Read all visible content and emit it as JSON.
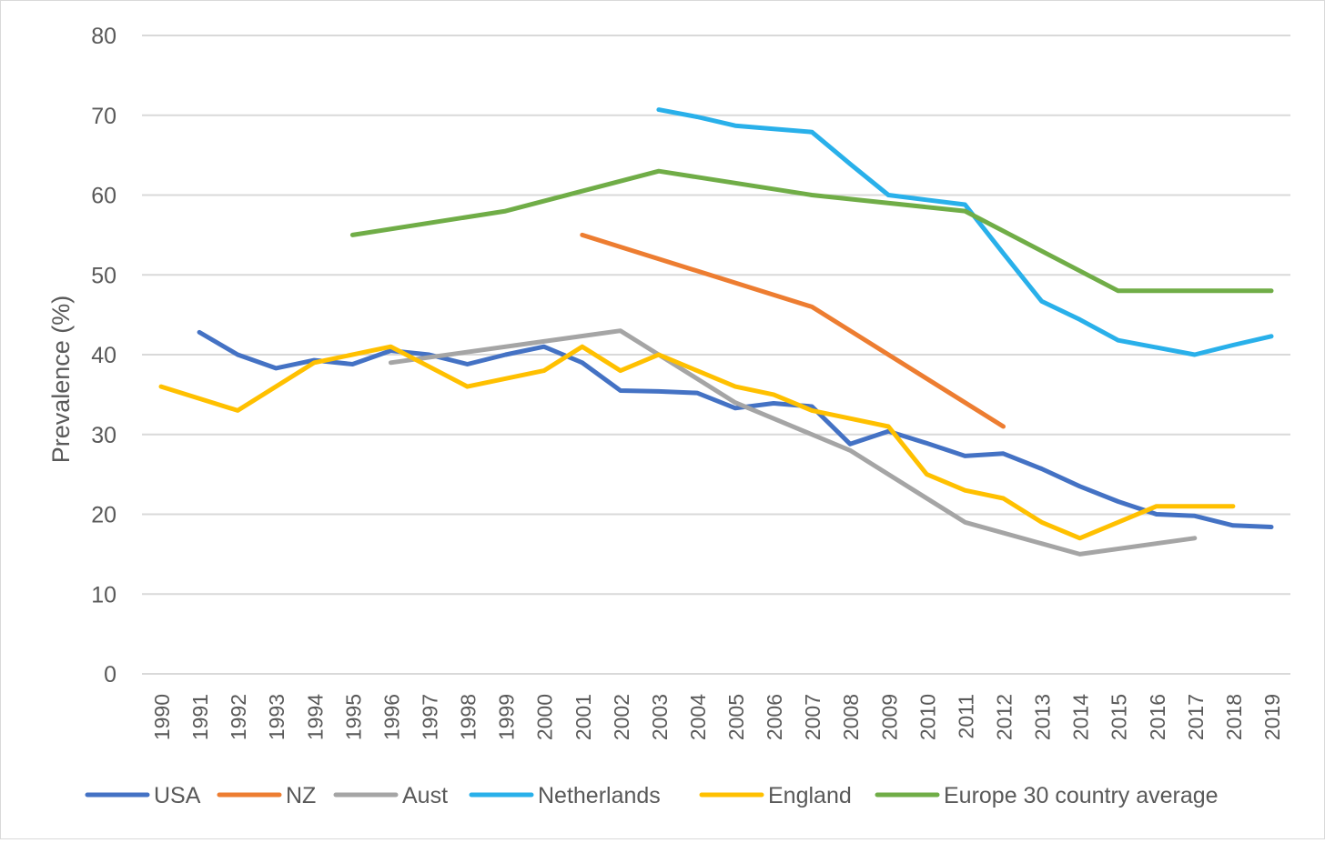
{
  "chart_data": {
    "type": "line",
    "title": "",
    "xlabel": "",
    "ylabel": "Prevalence (%)",
    "ylim": [
      0,
      80
    ],
    "yticks": [
      0,
      10,
      20,
      30,
      40,
      50,
      60,
      70,
      80
    ],
    "grid": true,
    "legend_position": "bottom",
    "categories": [
      "1990",
      "1991",
      "1992",
      "1993",
      "1994",
      "1995",
      "1996",
      "1997",
      "1998",
      "1999",
      "2000",
      "2001",
      "2002",
      "2003",
      "2004",
      "2005",
      "2006",
      "2007",
      "2008",
      "2009",
      "2010",
      "2011",
      "2012",
      "2013",
      "2014",
      "2015",
      "2016",
      "2017",
      "2018",
      "2019"
    ],
    "series": [
      {
        "name": "USA",
        "color": "#4472c4",
        "values": [
          null,
          42.8,
          40.0,
          38.3,
          39.3,
          38.8,
          40.5,
          40.0,
          38.8,
          40.0,
          41.0,
          39.0,
          35.5,
          35.4,
          35.2,
          33.3,
          33.9,
          33.5,
          28.8,
          30.4,
          28.9,
          27.3,
          27.6,
          25.7,
          23.5,
          21.6,
          20.0,
          19.8,
          18.6,
          18.4
        ]
      },
      {
        "name": "NZ",
        "color": "#ed7d31",
        "values": [
          null,
          null,
          null,
          null,
          null,
          null,
          null,
          null,
          null,
          null,
          null,
          55,
          null,
          null,
          null,
          null,
          null,
          46,
          null,
          null,
          null,
          null,
          31,
          null,
          null,
          null,
          null,
          null,
          null,
          null
        ]
      },
      {
        "name": "Aust",
        "color": "#a5a5a5",
        "values": [
          null,
          null,
          null,
          null,
          null,
          null,
          39,
          null,
          null,
          null,
          null,
          null,
          43,
          null,
          null,
          34,
          null,
          null,
          28,
          null,
          null,
          19,
          null,
          null,
          15,
          null,
          null,
          17,
          null,
          null
        ]
      },
      {
        "name": "Netherlands",
        "color": "#29b0ea",
        "values": [
          null,
          null,
          null,
          null,
          null,
          null,
          null,
          null,
          null,
          null,
          null,
          null,
          null,
          70.7,
          69.8,
          68.7,
          68.3,
          67.9,
          63.9,
          60.0,
          59.4,
          58.8,
          52.7,
          46.7,
          44.4,
          41.8,
          40.9,
          40.0,
          41.2,
          42.3
        ]
      },
      {
        "name": "England",
        "color": "#ffc000",
        "values": [
          36,
          null,
          33,
          null,
          39,
          null,
          41,
          null,
          36,
          null,
          38,
          41,
          38,
          40,
          38,
          36,
          35,
          33,
          32,
          31,
          25,
          23,
          22,
          19,
          17,
          19,
          21,
          21,
          21,
          null
        ]
      },
      {
        "name": "Europe 30 country average",
        "color": "#70ad47",
        "values": [
          null,
          null,
          null,
          null,
          null,
          55,
          null,
          null,
          null,
          58,
          null,
          null,
          null,
          63,
          null,
          null,
          null,
          60,
          null,
          null,
          null,
          58,
          null,
          null,
          null,
          48,
          null,
          null,
          null,
          48
        ]
      }
    ]
  }
}
